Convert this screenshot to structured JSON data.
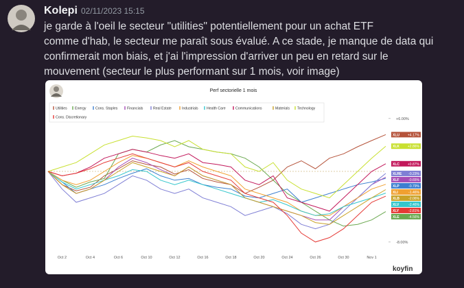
{
  "message": {
    "author": "Kolepi",
    "timestamp": "02/11/2023 15:15",
    "lines": [
      "je garde à l'oeil le secteur \"utilities\" potentiellement pour un achat ETF",
      "comme d'hab, le secteur me paraît sous évalué. A ce stade, je manque de data qui",
      "confirmerait mon biais, et j'ai l'impression d'arriver un peu en retard sur le",
      "mouvement (secteur le plus performant sur 1 mois, voir image)"
    ]
  },
  "chart_data": {
    "type": "line",
    "title": "Perf sectorielle 1 mois",
    "categories": [
      null,
      "Oct 2",
      null,
      "Oct 4",
      null,
      "Oct 6",
      null,
      "Oct 10",
      null,
      "Oct 12",
      null,
      "Oct 16",
      null,
      "Oct 18",
      null,
      "Oct 20",
      null,
      "Oct 24",
      null,
      "Oct 26",
      null,
      "Oct 30",
      null,
      "Nov 1",
      null
    ],
    "ylim": [
      -8.94,
      8.16
    ],
    "yticks": [
      {
        "value": 6,
        "label": "+6.00%"
      },
      {
        "value": -8,
        "label": "-8.00%"
      }
    ],
    "series": [
      {
        "name": "Utilities",
        "ticker": "XLU",
        "end_label": "+4.17%",
        "color": "#b5533a",
        "values": [
          0,
          -1.5,
          -2.2,
          -1.8,
          -0.5,
          0.3,
          1.2,
          0.8,
          0.5,
          -0.3,
          0.2,
          -0.8,
          -1.2,
          -1.5,
          -2.5,
          -1.8,
          -1.0,
          0.5,
          1.2,
          0.3,
          1.5,
          2.0,
          2.8,
          3.5,
          4.17
        ]
      },
      {
        "name": "Energy",
        "ticker": "XLE",
        "end_label": "-4.56%",
        "color": "#6aa84f",
        "values": [
          0,
          -1.0,
          -1.8,
          -1.2,
          -0.8,
          2.0,
          2.5,
          2.2,
          3.0,
          3.5,
          2.8,
          2.5,
          2.2,
          2.0,
          1.5,
          0.5,
          -1.0,
          -2.5,
          -3.5,
          -4.5,
          -5.5,
          -6.2,
          -6.0,
          -5.5,
          -4.56
        ]
      },
      {
        "name": "Cons. Staples",
        "ticker": "XLP",
        "end_label": "-0.79%",
        "color": "#3d7fd0",
        "values": [
          0,
          -1.2,
          -2.5,
          -2.0,
          -1.5,
          -0.8,
          -0.2,
          0.3,
          -0.5,
          -1.0,
          -0.8,
          -1.5,
          -1.8,
          -2.0,
          -2.8,
          -3.0,
          -2.5,
          -2.0,
          -3.5,
          -3.0,
          -2.5,
          -2.0,
          -1.5,
          -1.2,
          -0.79
        ]
      },
      {
        "name": "Financials",
        "ticker": "XLF",
        "end_label": "-0.65%",
        "color": "#a64db5",
        "values": [
          0,
          -1.5,
          -2.5,
          -2.0,
          -1.0,
          0.5,
          1.5,
          1.0,
          0.2,
          -0.5,
          0.5,
          -0.5,
          -1.0,
          -1.5,
          -3.0,
          -3.5,
          -4.0,
          -4.5,
          -5.0,
          -5.5,
          -5.5,
          -4.0,
          -3.0,
          -1.5,
          -0.65
        ]
      },
      {
        "name": "Real Estate",
        "ticker": "XLRE",
        "end_label": "-0.23%",
        "color": "#7f7fd5",
        "values": [
          0,
          -2.0,
          -3.5,
          -3.0,
          -2.5,
          -1.5,
          -0.5,
          -1.0,
          -2.0,
          -2.5,
          -2.0,
          -3.0,
          -3.5,
          -4.0,
          -5.0,
          -4.5,
          -4.0,
          -4.8,
          -6.0,
          -6.5,
          -6.0,
          -4.5,
          -3.0,
          -1.5,
          -0.23
        ]
      },
      {
        "name": "Industrials",
        "ticker": "XLI",
        "end_label": "-1.46%",
        "color": "#f0a030",
        "values": [
          0,
          -1.0,
          -1.5,
          -1.0,
          0.0,
          1.0,
          1.8,
          1.5,
          1.0,
          0.5,
          1.2,
          0.5,
          0.0,
          -0.5,
          -2.0,
          -2.5,
          -3.0,
          -3.5,
          -4.5,
          -5.0,
          -5.0,
          -4.0,
          -3.0,
          -2.0,
          -1.46
        ]
      },
      {
        "name": "Health Care",
        "ticker": "XLV",
        "end_label": "-2.46%",
        "color": "#33c6cc",
        "values": [
          0,
          -1.2,
          -2.0,
          -1.5,
          -1.0,
          -0.5,
          0.2,
          0.0,
          -1.0,
          -1.5,
          -1.0,
          -1.5,
          -2.0,
          -2.5,
          -3.0,
          -3.5,
          -3.2,
          -3.8,
          -4.5,
          -5.0,
          -4.8,
          -4.0,
          -3.5,
          -3.0,
          -2.46
        ]
      },
      {
        "name": "Communications",
        "ticker": "XLC",
        "end_label": "+0.87%",
        "color": "#c2185b",
        "values": [
          0,
          -0.5,
          -0.2,
          0.5,
          1.5,
          2.0,
          2.5,
          2.2,
          1.8,
          1.5,
          2.0,
          1.0,
          0.8,
          0.5,
          -1.0,
          -1.5,
          -0.5,
          -3.0,
          -3.5,
          -4.0,
          -4.5,
          -3.0,
          -1.5,
          0.0,
          0.87
        ]
      },
      {
        "name": "Materials",
        "ticker": "XLB",
        "end_label": "-2.06%",
        "color": "#c9a227",
        "values": [
          0,
          -1.5,
          -2.5,
          -2.0,
          -1.0,
          0.0,
          1.0,
          0.5,
          0.0,
          -0.5,
          0.5,
          -0.5,
          -1.0,
          -1.5,
          -3.0,
          -3.5,
          -4.0,
          -4.5,
          -5.0,
          -5.8,
          -6.0,
          -5.0,
          -4.0,
          -3.0,
          -2.06
        ]
      },
      {
        "name": "Technology",
        "ticker": "XLK",
        "end_label": "+2.86%",
        "color": "#c8e030",
        "values": [
          0,
          0.5,
          1.0,
          2.0,
          3.0,
          3.5,
          4.0,
          3.8,
          3.5,
          2.8,
          3.5,
          2.5,
          2.2,
          2.0,
          0.5,
          0.0,
          1.0,
          -1.0,
          -2.0,
          -2.5,
          -3.0,
          -1.5,
          0.0,
          1.5,
          2.86
        ]
      },
      {
        "name": "Cons. Discretionary",
        "ticker": "XLY",
        "end_label": "-2.81%",
        "color": "#e53935",
        "values": [
          0,
          -0.5,
          -0.2,
          0.3,
          1.0,
          1.5,
          2.0,
          1.5,
          1.0,
          0.5,
          1.0,
          0.0,
          -0.5,
          -1.0,
          -2.5,
          -3.0,
          -3.5,
          -5.0,
          -7.0,
          -8.0,
          -7.5,
          -6.5,
          -5.0,
          -3.5,
          -2.81
        ]
      }
    ]
  },
  "watermark": "koyfin"
}
